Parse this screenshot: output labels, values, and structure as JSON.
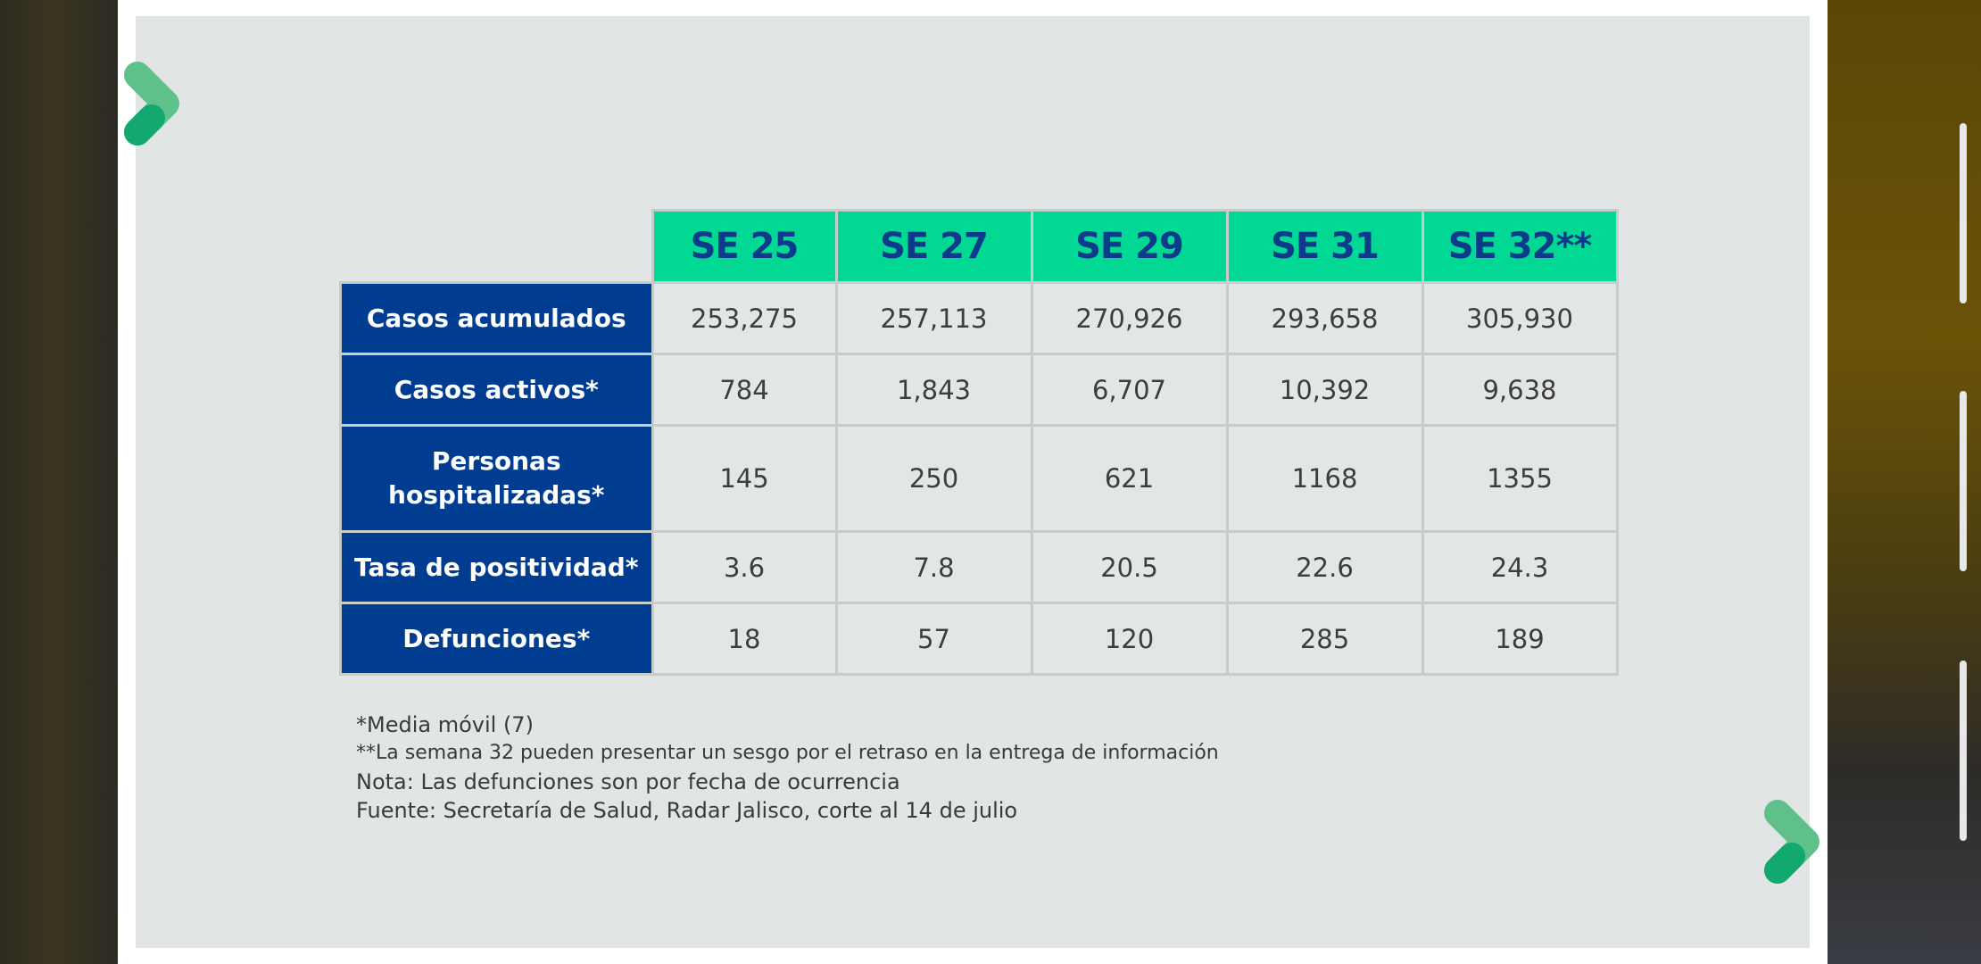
{
  "table": {
    "columns": [
      "SE 25",
      "SE 27",
      "SE 29",
      "SE 31",
      "SE 32**"
    ],
    "rows": [
      {
        "label": "Casos acumulados",
        "values": [
          "253,275",
          "257,113",
          "270,926",
          "293,658",
          "305,930"
        ]
      },
      {
        "label": "Casos activos*",
        "values": [
          "784",
          "1,843",
          "6,707",
          "10,392",
          "9,638"
        ]
      },
      {
        "label": "Personas\nhospitalizadas*",
        "values": [
          "145",
          "250",
          "621",
          "1168",
          "1355"
        ]
      },
      {
        "label": "Tasa de positividad*",
        "values": [
          "3.6",
          "7.8",
          "20.5",
          "22.6",
          "24.3"
        ]
      },
      {
        "label": "Defunciones*",
        "values": [
          "18",
          "57",
          "120",
          "285",
          "189"
        ]
      }
    ]
  },
  "notes": [
    "*Media móvil (7)",
    "**La semana 32 pueden presentar un sesgo  por el retraso en la entrega de información",
    "Nota: Las defunciones son por fecha de ocurrencia",
    "Fuente: Secretaría de Salud, Radar Jalisco, corte al 14 de julio"
  ],
  "colors": {
    "header_green": "#00d893",
    "header_text": "#0d3a8a",
    "row_header_blue": "#003c8f",
    "slide_bg": "#e1e5e6",
    "deco_light_green": "#5fc08a",
    "deco_dark_green": "#13a86e"
  },
  "icons": [
    "chevron-logo-icon"
  ]
}
